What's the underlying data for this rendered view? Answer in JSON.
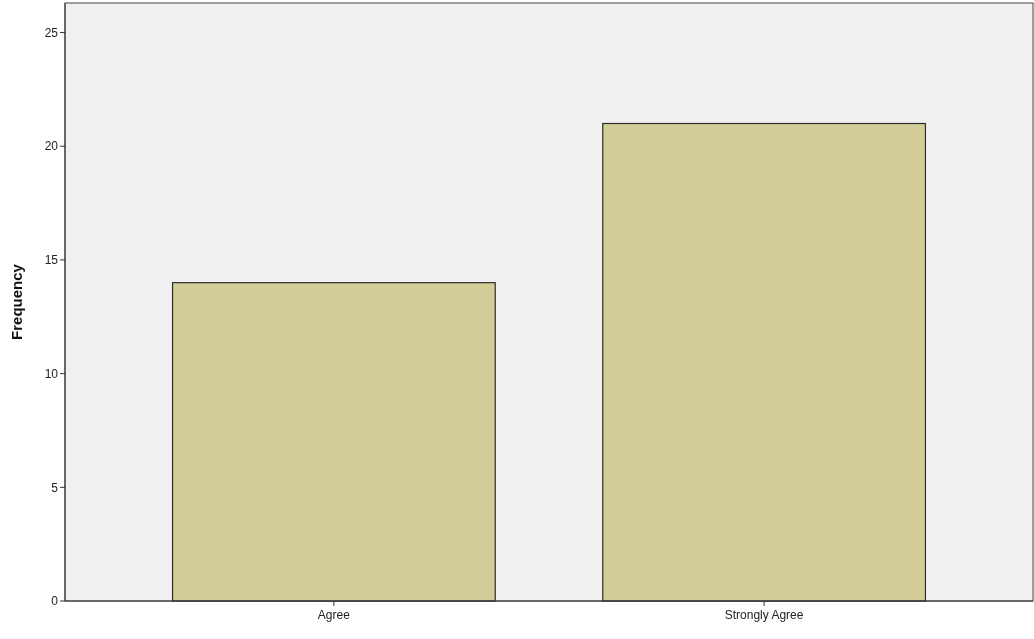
{
  "chart_data": {
    "type": "bar",
    "ylabel": "Frequency",
    "categories": [
      "Agree",
      "Strongly Agree"
    ],
    "values": [
      14,
      21
    ],
    "color": "#d3ce97",
    "ylim": [
      0,
      26.3
    ],
    "yticks": [
      0,
      5,
      10,
      15,
      20,
      25
    ],
    "grid": false
  }
}
